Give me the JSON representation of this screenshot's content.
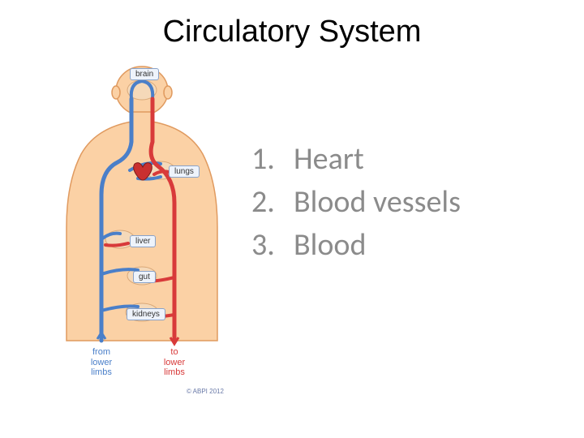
{
  "title": "Circulatory System",
  "list": {
    "color": "#8b8b8b",
    "fontsize": 38,
    "items": [
      {
        "num": "1.",
        "text": "Heart"
      },
      {
        "num": "2.",
        "text": "Blood vessels"
      },
      {
        "num": "3.",
        "text": "Blood"
      }
    ]
  },
  "diagram": {
    "body_fill": "#fbd1a5",
    "body_stroke": "#e09a5f",
    "vein_color": "#4a7fc9",
    "artery_color": "#d83a3a",
    "heart_color": "#c93030",
    "label_bg": "#eef3fb",
    "label_border": "#8aa3c9",
    "organ_fill": "#f5d9b9",
    "organ_stroke": "#d9a878",
    "labels": {
      "brain": "brain",
      "lungs": "lungs",
      "liver": "liver",
      "gut": "gut",
      "kidneys": "kidneys"
    },
    "limb_left": "from\nlower\nlimbs",
    "limb_right": "to\nlower\nlimbs",
    "copyright": "© ABPI 2012"
  }
}
